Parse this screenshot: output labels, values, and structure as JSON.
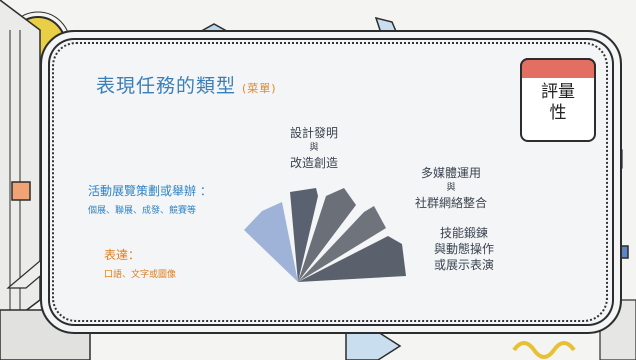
{
  "title": "表現任務的類型",
  "title_note": "(菜單)",
  "badge": {
    "line1": "評量",
    "line2": "性"
  },
  "items": {
    "exhibition": {
      "main": "活動展覽策劃或舉辦 ：",
      "sub": "個展、聯展、成發、競賽等"
    },
    "expression": {
      "main": "表達：",
      "sub": "口語、文字或圖像"
    },
    "design": {
      "line1": "設計發明",
      "conj": "與",
      "line2": "改造創造"
    },
    "multimedia": {
      "line1": "多媒體運用",
      "conj": "與",
      "line2": "社群網絡整合"
    },
    "skills": {
      "line1": "技能鍛鍊",
      "line2": "與動態操作",
      "line3": "或展示表演"
    }
  },
  "colors": {
    "blue": "#2f84c6",
    "orange": "#e08020",
    "slice_light": "#9fb3d9",
    "slice_dark": "#5a6170"
  }
}
